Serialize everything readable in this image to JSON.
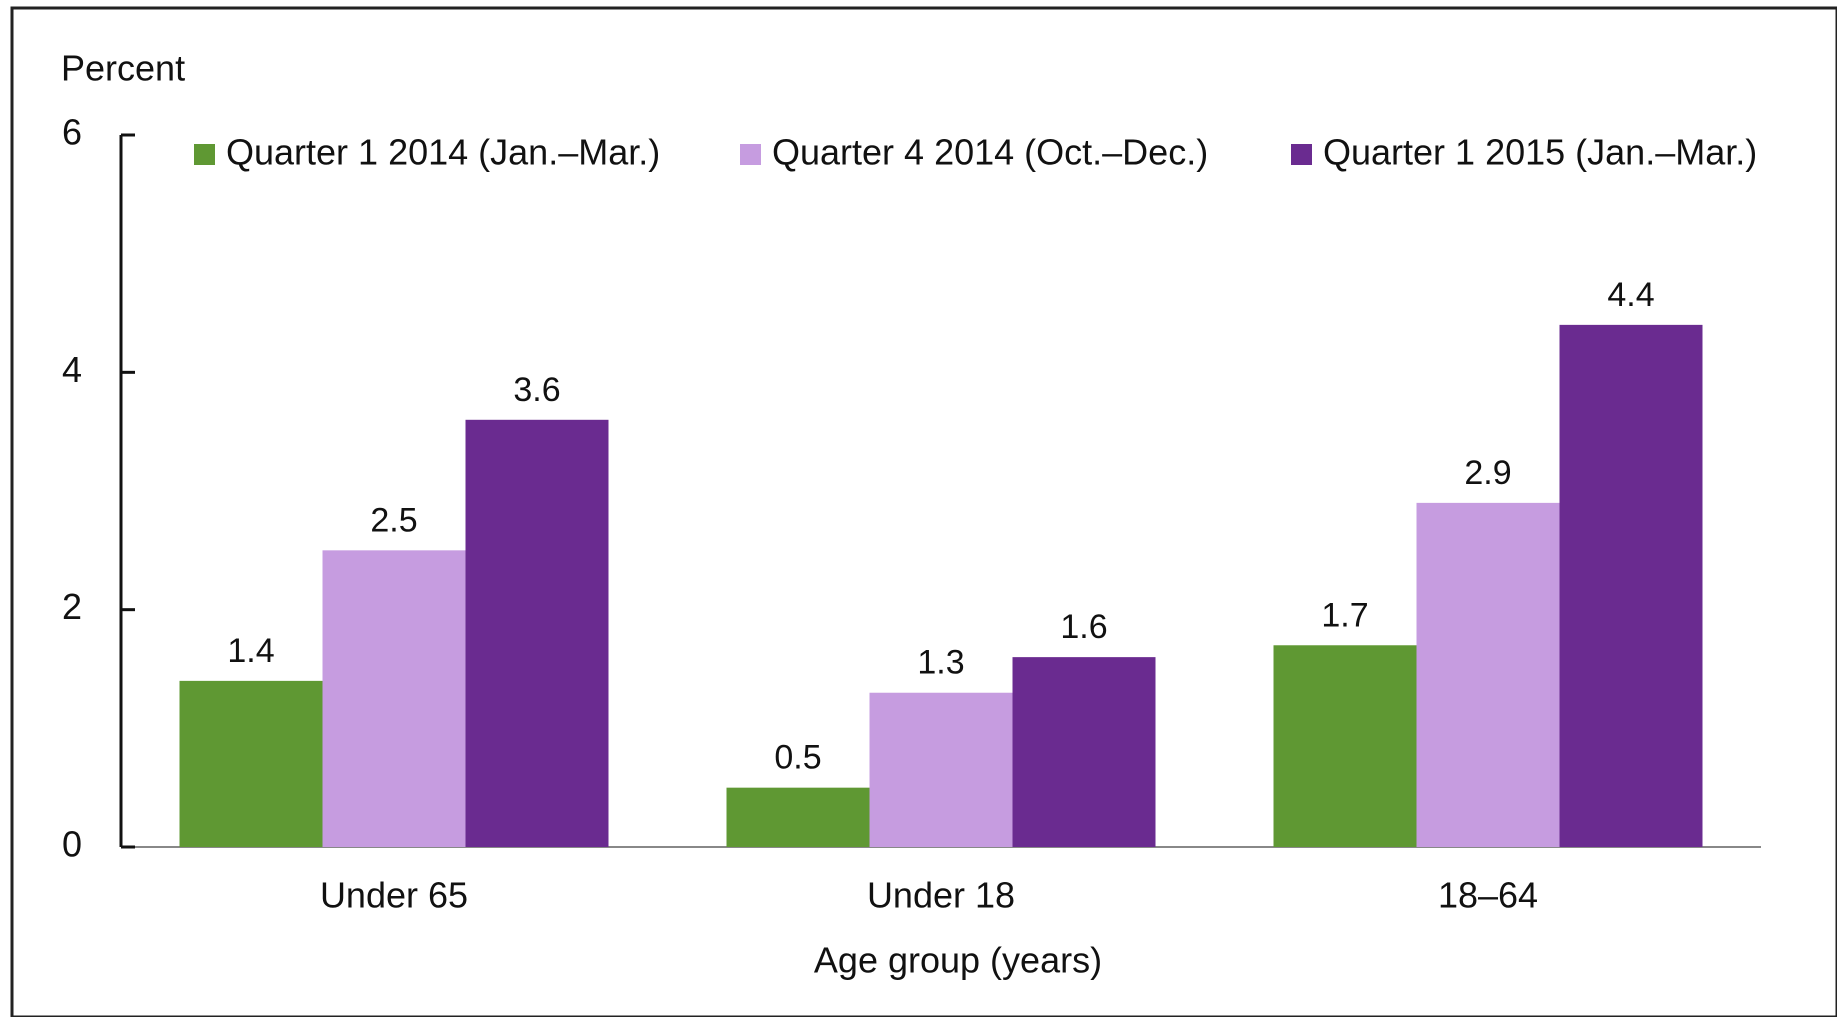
{
  "chart_data": {
    "type": "bar",
    "y_axis_label": "Percent",
    "x_axis_label": "Age group (years)",
    "categories": [
      "Under 65",
      "Under 18",
      "18–64"
    ],
    "series": [
      {
        "name": "Quarter 1 2014 (Jan.–Mar.)",
        "color": "#5f9833",
        "values": [
          1.4,
          0.5,
          1.7
        ]
      },
      {
        "name": "Quarter 4 2014 (Oct.–Dec.)",
        "color": "#c69ce0",
        "values": [
          2.5,
          1.3,
          2.9
        ]
      },
      {
        "name": "Quarter 1 2015 (Jan.–Mar.)",
        "color": "#6a2b90",
        "values": [
          3.6,
          1.6,
          4.4
        ]
      }
    ],
    "ylim": [
      0,
      6
    ],
    "yticks": [
      0,
      2,
      4,
      6
    ],
    "grid": false,
    "legend": "top"
  }
}
